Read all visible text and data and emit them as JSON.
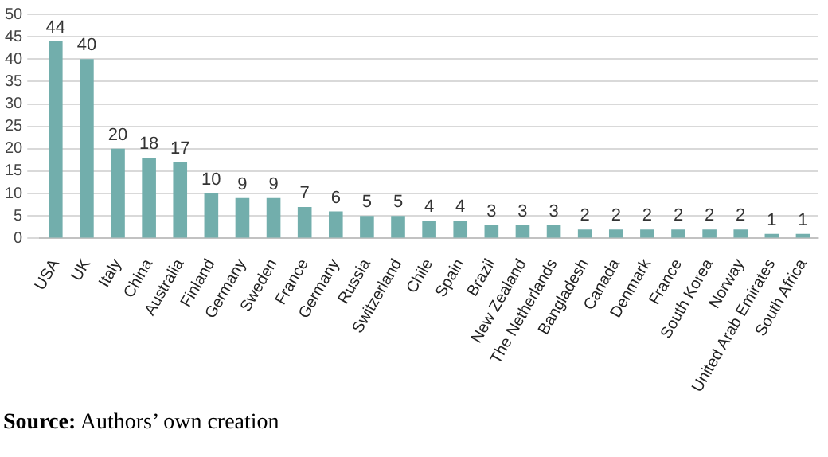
{
  "chart_data": {
    "type": "bar",
    "categories": [
      "USA",
      "UK",
      "Italy",
      "China",
      "Australia",
      "Finland",
      "Germany",
      "Sweden",
      "France",
      "Germany",
      "Russia",
      "Switzerland",
      "Chile",
      "Spain",
      "Brazil",
      "New Zealand",
      "The Netherlands",
      "Bangladesh",
      "Canada",
      "Denmark",
      "France",
      "South Korea",
      "Norway",
      "United Arab Emirates",
      "South Africa"
    ],
    "values": [
      44,
      40,
      20,
      18,
      17,
      10,
      9,
      9,
      7,
      6,
      5,
      5,
      4,
      4,
      3,
      3,
      3,
      2,
      2,
      2,
      2,
      2,
      2,
      1,
      1
    ],
    "color": "#72aeac",
    "ylim": [
      0,
      50
    ],
    "yticks": [
      0,
      5,
      10,
      15,
      20,
      25,
      30,
      35,
      40,
      45,
      50
    ],
    "grid": "y",
    "data_labels": true,
    "annotations": [
      "Source: Authors’ own creation"
    ]
  }
}
